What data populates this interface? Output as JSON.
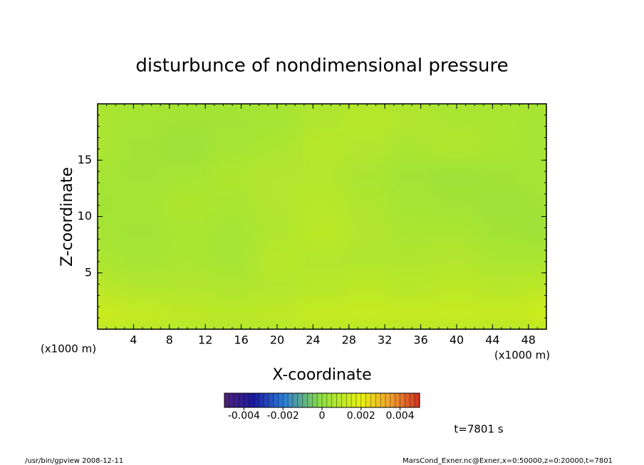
{
  "chart_data": {
    "type": "contour",
    "title": "disturbunce of nondimensional pressure",
    "x_label": "X-coordinate",
    "y_label": "Z-coordinate",
    "x_unit_labels": [
      "(x1000 m)",
      "(x1000 m)"
    ],
    "time_label": "t=7801 s",
    "footer_left": "/usr/bin/gpview   2008-12-11",
    "footer_right": "MarsCond_Exner.nc@Exner,x=0:50000,z=0:20000,t=7801",
    "xlim": [
      0,
      50
    ],
    "ylim": [
      0,
      20
    ],
    "xticks": [
      4,
      8,
      12,
      16,
      20,
      24,
      28,
      32,
      36,
      40,
      44,
      48
    ],
    "yticks": [
      5,
      10,
      15
    ],
    "x": [
      0,
      5,
      10,
      15,
      20,
      25,
      30,
      35,
      40,
      45,
      50
    ],
    "z": [
      1.25,
      3.75,
      6.25,
      8.75,
      11.25,
      13.75,
      16.25,
      18.75
    ],
    "values": [
      [
        0.0014,
        0.0012,
        0.0011,
        0.001,
        0.0011,
        0.0012,
        0.0013,
        0.0012,
        0.0013,
        0.0012,
        0.0014
      ],
      [
        0.0009,
        0.0008,
        0.0008,
        0.0007,
        0.0008,
        0.0009,
        0.001,
        0.0009,
        0.001,
        0.0009,
        0.001
      ],
      [
        0.0006,
        0.0005,
        0.0006,
        0.0005,
        0.0009,
        0.0008,
        0.0007,
        0.0007,
        0.0008,
        0.0006,
        0.0006
      ],
      [
        0.0005,
        0.0004,
        0.0006,
        0.0005,
        0.0007,
        0.001,
        0.0008,
        0.0006,
        0.0006,
        0.0004,
        0.0003
      ],
      [
        0.0004,
        0.0005,
        0.0007,
        0.0006,
        0.0008,
        0.0009,
        0.0007,
        0.0005,
        0.0004,
        0.0003,
        0.0004
      ],
      [
        0.0005,
        0.0004,
        0.0005,
        0.0007,
        0.0008,
        0.0008,
        0.0006,
        0.0004,
        0.0003,
        0.0004,
        0.0005
      ],
      [
        0.0006,
        0.0004,
        0.0003,
        0.0005,
        0.0006,
        0.0009,
        0.0008,
        0.0006,
        0.0008,
        0.0006,
        0.0005
      ],
      [
        0.0006,
        0.0005,
        0.0004,
        0.0004,
        0.0005,
        0.0007,
        0.0009,
        0.0008,
        0.0006,
        0.0006,
        0.0005
      ]
    ],
    "clim": [
      -0.005,
      0.005
    ],
    "cticks": [
      -0.004,
      -0.002,
      0,
      0.002,
      0.004
    ]
  }
}
